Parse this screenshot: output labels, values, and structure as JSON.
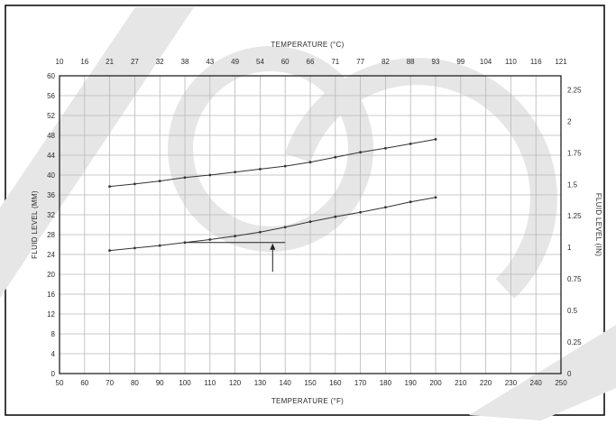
{
  "chart_data": {
    "type": "line",
    "xlabel": "TEMPERATURE (°F)",
    "x2label": "TEMPERATURE (°C)",
    "ylabel": "FLUID LEVEL (MM)",
    "y2label": "FLUID LEVEL (IN)",
    "xlim": [
      50,
      250
    ],
    "ylim": [
      0,
      60
    ],
    "y2lim": [
      0,
      2.36
    ],
    "grid": true,
    "x_ticks": [
      "50",
      "60",
      "70",
      "80",
      "90",
      "100",
      "110",
      "120",
      "130",
      "140",
      "150",
      "160",
      "170",
      "180",
      "190",
      "200",
      "210",
      "220",
      "230",
      "240",
      "250"
    ],
    "x2_ticks": [
      "10",
      "16",
      "21",
      "27",
      "32",
      "38",
      "43",
      "49",
      "54",
      "60",
      "66",
      "71",
      "77",
      "82",
      "88",
      "93",
      "99",
      "104",
      "110",
      "116",
      "121"
    ],
    "y_ticks": [
      "0",
      "4",
      "8",
      "12",
      "16",
      "20",
      "24",
      "28",
      "32",
      "36",
      "40",
      "44",
      "48",
      "52",
      "56",
      "60"
    ],
    "y2_ticks": [
      {
        "label": "0",
        "value": 0
      },
      {
        "label": "0.25",
        "value": 0.25
      },
      {
        "label": "0.5",
        "value": 0.5
      },
      {
        "label": "0.75",
        "value": 0.75
      },
      {
        "label": "1",
        "value": 1
      },
      {
        "label": "1.25",
        "value": 1.25
      },
      {
        "label": "1.5",
        "value": 1.5
      },
      {
        "label": "1.75",
        "value": 1.75
      },
      {
        "label": "2",
        "value": 2
      },
      {
        "label": "2.25",
        "value": 2.25
      }
    ],
    "x": [
      70,
      80,
      90,
      100,
      110,
      120,
      130,
      140,
      150,
      160,
      170,
      180,
      190,
      200
    ],
    "series": [
      {
        "values": [
          37.7,
          38.2,
          38.8,
          39.5,
          40.0,
          40.6,
          41.2,
          41.8,
          42.6,
          43.6,
          44.6,
          45.4,
          46.3,
          47.2
        ]
      },
      {
        "values": [
          24.8,
          25.3,
          25.8,
          26.4,
          27.0,
          27.7,
          28.5,
          29.5,
          30.6,
          31.6,
          32.5,
          33.5,
          34.6,
          35.5
        ]
      }
    ],
    "annotation": {
      "type": "arrow-bracket",
      "x_from": 100,
      "x_to": 140,
      "x_arrow": 135,
      "y_level": 26.4,
      "y_tail": 20.5
    },
    "colors": {
      "line": "#333333",
      "grid": "#b8b8b8",
      "frame": "#111111",
      "watermark": "#e6e6e6"
    }
  }
}
